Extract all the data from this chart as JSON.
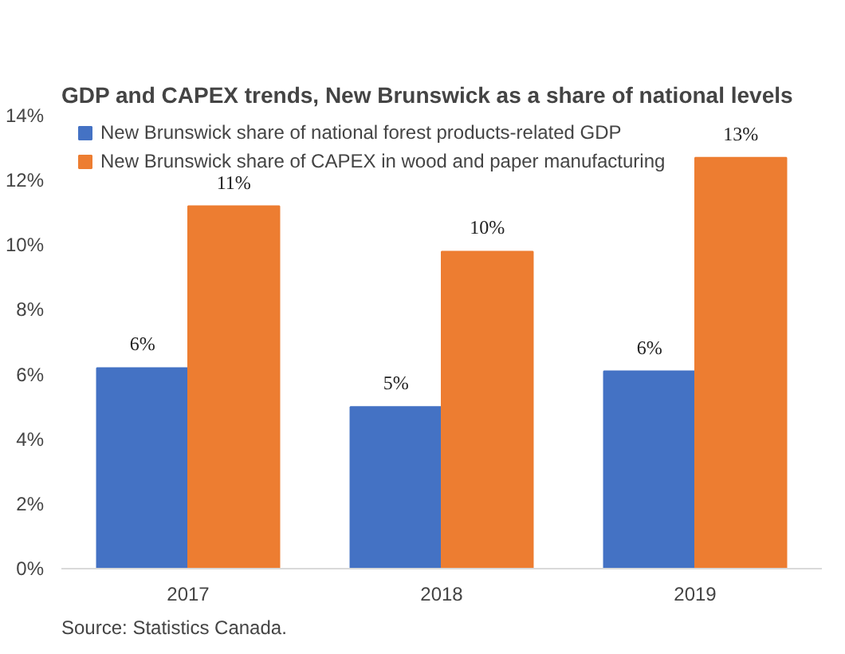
{
  "chart_data": {
    "type": "bar",
    "title": "GDP and CAPEX trends, New Brunswick as a share of national levels",
    "categories": [
      "2017",
      "2018",
      "2019"
    ],
    "series": [
      {
        "name": "New Brunswick share of national forest products-related GDP",
        "color": "#4472c4",
        "values": [
          6.2,
          5.0,
          6.1
        ],
        "value_labels": [
          "6%",
          "5%",
          "6%"
        ]
      },
      {
        "name": "New Brunswick share of CAPEX in wood and paper manufacturing",
        "color": "#ed7d31",
        "values": [
          11.2,
          9.8,
          12.7
        ],
        "value_labels": [
          "11%",
          "10%",
          "13%"
        ]
      }
    ],
    "ylim": [
      0,
      14
    ],
    "yticks": [
      {
        "value": 0,
        "label": "0%"
      },
      {
        "value": 2,
        "label": "2%"
      },
      {
        "value": 4,
        "label": "4%"
      },
      {
        "value": 6,
        "label": "6%"
      },
      {
        "value": 8,
        "label": "8%"
      },
      {
        "value": 10,
        "label": "10%"
      },
      {
        "value": 12,
        "label": "12%"
      },
      {
        "value": 14,
        "label": "14%"
      }
    ],
    "grid": false,
    "legend": "top",
    "annotations": [
      "Source: Statistics Canada."
    ]
  }
}
